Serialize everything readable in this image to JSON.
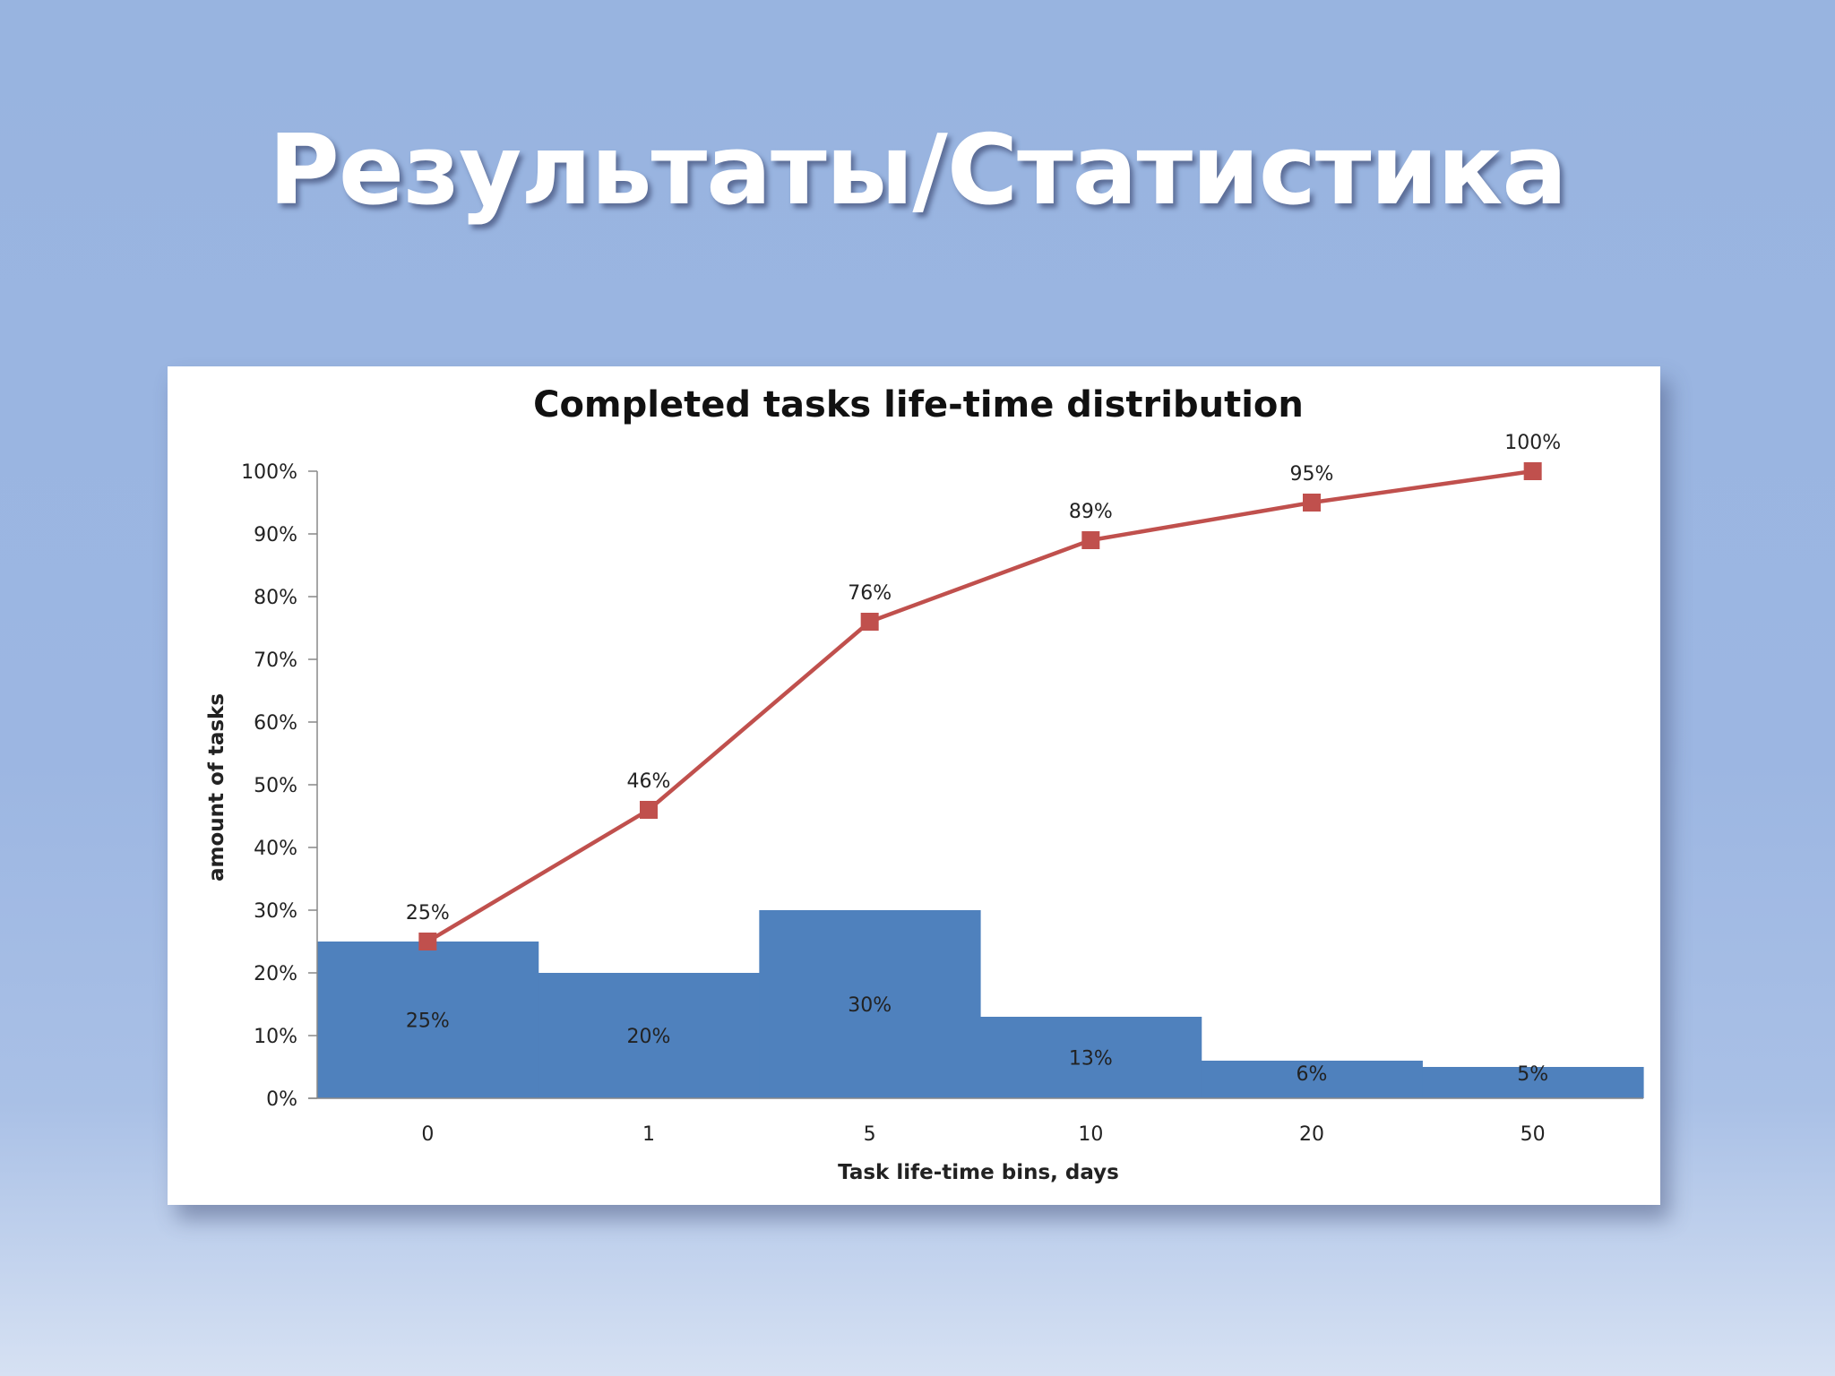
{
  "slide": {
    "title": "Результаты/Статистика"
  },
  "chart_data": {
    "type": "bar",
    "title": "Completed tasks life-time distribution",
    "xlabel": "Task life-time bins, days",
    "ylabel": "amount of tasks",
    "categories": [
      "0",
      "1",
      "5",
      "10",
      "20",
      "50"
    ],
    "ylim": [
      0,
      100
    ],
    "yticks": [
      "0%",
      "10%",
      "20%",
      "30%",
      "40%",
      "50%",
      "60%",
      "70%",
      "80%",
      "90%",
      "100%"
    ],
    "grid": false,
    "series": [
      {
        "type": "bar",
        "values": [
          25,
          20,
          30,
          13,
          6,
          5
        ],
        "labels": [
          "25%",
          "20%",
          "30%",
          "13%",
          "6%",
          "5%"
        ],
        "color": "#4f81bd"
      },
      {
        "type": "line",
        "values": [
          25,
          46,
          76,
          89,
          95,
          100
        ],
        "labels": [
          "25%",
          "46%",
          "76%",
          "89%",
          "95%",
          "100%"
        ],
        "color": "#c0504d"
      }
    ]
  }
}
